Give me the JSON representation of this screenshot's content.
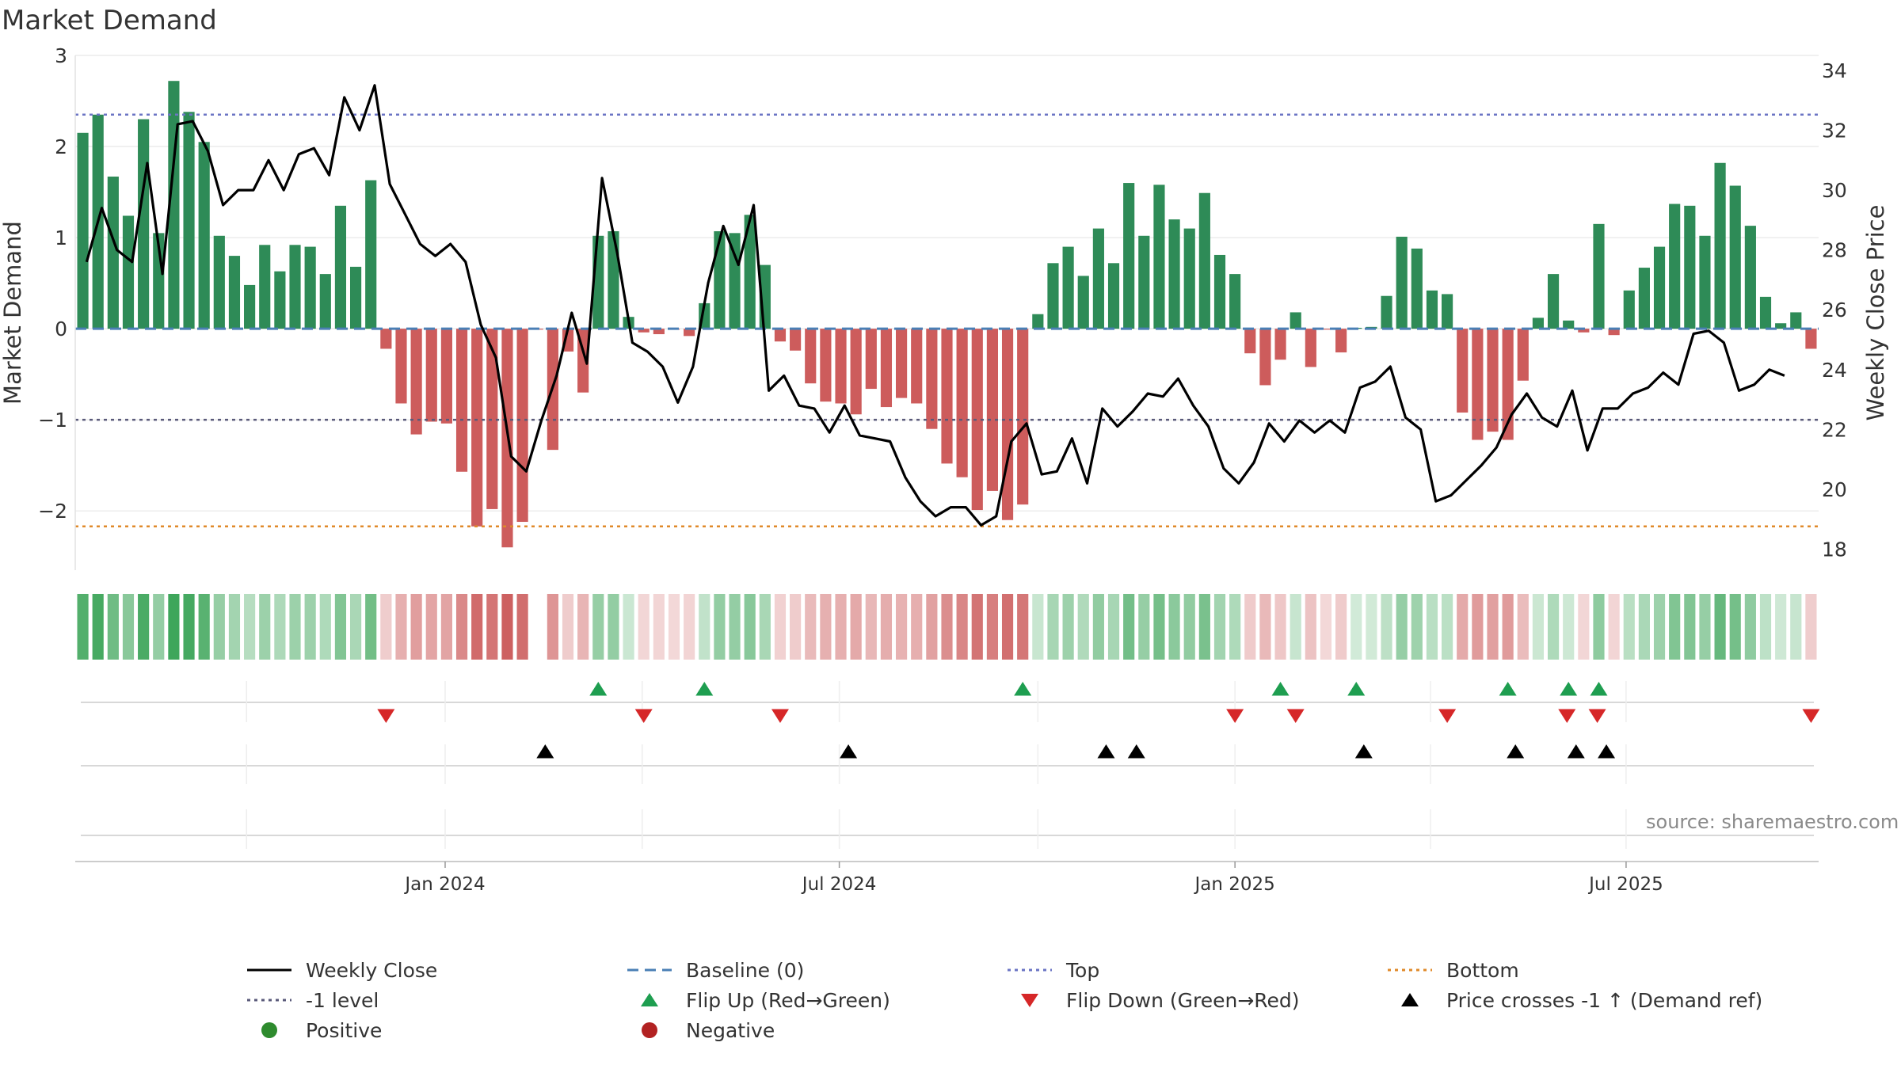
{
  "chart_data": {
    "type": "bar",
    "title": "Market Demand",
    "ylabel_left": "Market Demand",
    "ylabel_right": "Weekly Close Price",
    "ylim_left": [
      -2.65,
      3.0
    ],
    "ylim_right": [
      17.3,
      34.5
    ],
    "yticks_left": [
      {
        "v": 3,
        "label": "3"
      },
      {
        "v": 2,
        "label": "2"
      },
      {
        "v": 1,
        "label": "1"
      },
      {
        "v": 0,
        "label": "0"
      },
      {
        "v": -1,
        "label": "−1"
      },
      {
        "v": -2,
        "label": "−2"
      }
    ],
    "yticks_right": [
      {
        "v": 34,
        "label": "34"
      },
      {
        "v": 32,
        "label": "32"
      },
      {
        "v": 30,
        "label": "30"
      },
      {
        "v": 28,
        "label": "28"
      },
      {
        "v": 26,
        "label": "26"
      },
      {
        "v": 24,
        "label": "24"
      },
      {
        "v": 22,
        "label": "22"
      },
      {
        "v": 20,
        "label": "20"
      },
      {
        "v": 18,
        "label": "18"
      }
    ],
    "x_ticks": [
      {
        "week": 24.4,
        "label": "Jan 2024"
      },
      {
        "week": 50.4,
        "label": "Jul 2024"
      },
      {
        "week": 76.5,
        "label": "Jan 2025"
      },
      {
        "week": 102.3,
        "label": "Jul 2025"
      }
    ],
    "x_grid_weeks": [
      11.3,
      24.4,
      37.4,
      50.4,
      63.5,
      76.5,
      89.4,
      102.3
    ],
    "week_count": 115,
    "top_level": 2.35,
    "bottom_level": -2.17,
    "minus1_level": -1,
    "demand": [
      2.15,
      2.35,
      1.67,
      1.24,
      2.3,
      1.05,
      2.72,
      2.38,
      2.05,
      1.02,
      0.8,
      0.48,
      0.92,
      0.63,
      0.92,
      0.9,
      0.6,
      1.35,
      0.68,
      1.63,
      -0.22,
      -0.82,
      -1.16,
      -1.02,
      -1.04,
      -1.57,
      -2.17,
      -1.98,
      -2.4,
      -2.12,
      -0.01,
      -1.33,
      -0.25,
      -0.7,
      1.02,
      1.07,
      0.13,
      -0.04,
      -0.06,
      -0.01,
      -0.08,
      0.28,
      1.07,
      1.05,
      1.25,
      0.7,
      -0.14,
      -0.24,
      -0.6,
      -0.8,
      -0.82,
      -0.94,
      -0.66,
      -0.86,
      -0.76,
      -0.82,
      -1.1,
      -1.48,
      -1.63,
      -1.99,
      -1.78,
      -2.1,
      -1.93,
      0.16,
      0.72,
      0.9,
      0.58,
      1.1,
      0.72,
      1.6,
      1.02,
      1.58,
      1.2,
      1.1,
      1.49,
      0.81,
      0.6,
      -0.27,
      -0.62,
      -0.34,
      0.18,
      -0.42,
      -0.01,
      -0.26,
      0.01,
      0.02,
      0.36,
      1.01,
      0.88,
      0.42,
      0.38,
      -0.92,
      -1.22,
      -1.13,
      -1.22,
      -0.57,
      0.12,
      0.6,
      0.09,
      -0.04,
      1.15,
      -0.07,
      0.42,
      0.67,
      0.9,
      1.37,
      1.35,
      1.02,
      1.82,
      1.57,
      1.13,
      0.35,
      0.06,
      0.18,
      -0.22
    ],
    "close": [
      [
        0,
        27.6
      ],
      [
        1,
        29.4
      ],
      [
        2,
        28.0
      ],
      [
        3,
        27.6
      ],
      [
        4,
        30.9
      ],
      [
        5,
        27.2
      ],
      [
        6,
        32.2
      ],
      [
        7,
        32.3
      ],
      [
        8,
        31.3
      ],
      [
        9,
        29.5
      ],
      [
        10,
        30.0
      ],
      [
        11,
        30.0
      ],
      [
        12,
        31.0
      ],
      [
        13,
        30.0
      ],
      [
        14,
        31.2
      ],
      [
        15,
        31.4
      ],
      [
        16,
        30.5
      ],
      [
        17,
        33.1
      ],
      [
        18,
        32.0
      ],
      [
        19,
        33.5
      ],
      [
        20,
        30.2
      ],
      [
        21,
        29.2
      ],
      [
        22,
        28.2
      ],
      [
        23,
        27.8
      ],
      [
        24,
        28.2
      ],
      [
        25,
        27.6
      ],
      [
        26,
        25.5
      ],
      [
        27,
        24.4
      ],
      [
        28,
        21.1
      ],
      [
        29,
        20.6
      ],
      [
        30,
        22.3
      ],
      [
        31,
        23.8
      ],
      [
        32,
        25.9
      ],
      [
        33,
        24.2
      ],
      [
        34,
        30.4
      ],
      [
        35,
        27.9
      ],
      [
        36,
        24.9
      ],
      [
        37,
        24.6
      ],
      [
        38,
        24.1
      ],
      [
        39,
        22.9
      ],
      [
        40,
        24.1
      ],
      [
        41,
        26.9
      ],
      [
        42,
        28.8
      ],
      [
        43,
        27.5
      ],
      [
        44,
        29.5
      ],
      [
        45,
        23.3
      ],
      [
        46,
        23.8
      ],
      [
        47,
        22.8
      ],
      [
        48,
        22.7
      ],
      [
        49,
        21.9
      ],
      [
        50,
        22.8
      ],
      [
        51,
        21.8
      ],
      [
        52,
        21.7
      ],
      [
        53,
        21.6
      ],
      [
        54,
        20.4
      ],
      [
        55,
        19.6
      ],
      [
        56,
        19.1
      ],
      [
        57,
        19.4
      ],
      [
        58,
        19.4
      ],
      [
        59,
        18.8
      ],
      [
        60,
        19.1
      ],
      [
        61,
        21.6
      ],
      [
        62,
        22.2
      ],
      [
        63,
        20.5
      ],
      [
        64,
        20.6
      ],
      [
        65,
        21.7
      ],
      [
        66,
        20.2
      ],
      [
        67,
        22.7
      ],
      [
        68,
        22.1
      ],
      [
        69,
        22.6
      ],
      [
        70,
        23.2
      ],
      [
        71,
        23.1
      ],
      [
        72,
        23.7
      ],
      [
        73,
        22.8
      ],
      [
        74,
        22.1
      ],
      [
        75,
        20.7
      ],
      [
        76,
        20.2
      ],
      [
        77,
        20.9
      ],
      [
        78,
        22.2
      ],
      [
        79,
        21.6
      ],
      [
        80,
        22.3
      ],
      [
        81,
        21.9
      ],
      [
        82,
        22.3
      ],
      [
        83,
        21.9
      ],
      [
        84,
        23.4
      ],
      [
        85,
        23.6
      ],
      [
        86,
        24.1
      ],
      [
        87,
        22.4
      ],
      [
        88,
        22.0
      ],
      [
        89,
        19.6
      ],
      [
        90,
        19.8
      ],
      [
        91,
        20.3
      ],
      [
        92,
        20.8
      ],
      [
        93,
        21.4
      ],
      [
        94,
        22.5
      ],
      [
        95,
        23.2
      ],
      [
        96,
        22.4
      ],
      [
        97,
        22.1
      ],
      [
        98,
        23.3
      ],
      [
        99,
        21.3
      ],
      [
        100,
        22.7
      ],
      [
        101,
        22.7
      ],
      [
        102,
        23.2
      ],
      [
        103,
        23.4
      ],
      [
        104,
        23.9
      ],
      [
        105,
        23.5
      ],
      [
        106,
        25.2
      ],
      [
        107,
        25.3
      ],
      [
        108,
        24.9
      ],
      [
        109,
        23.3
      ],
      [
        110,
        23.5
      ],
      [
        111,
        24.0
      ],
      [
        112,
        23.8
      ]
    ],
    "close_x_offset": 0.25,
    "strip_gap_week": 30,
    "flip_up_weeks": [
      34.5,
      41.5,
      62.5,
      79.5,
      84.5,
      94.5,
      98.5,
      100.5
    ],
    "flip_down_weeks": [
      20.5,
      37.5,
      46.5,
      76.5,
      80.5,
      90.5,
      98.4,
      100.4,
      114.5
    ],
    "price_cross_weeks": [
      31,
      51,
      68,
      70,
      85,
      95,
      99,
      101
    ],
    "colors": {
      "positive_bar": "#2e8b57",
      "negative_bar": "#cd5c5c",
      "close_line": "#000000",
      "baseline": "#4a7fb5",
      "top_line": "#6b74c4",
      "bottom_line": "#e08a2a",
      "minus1_line": "#5a5a7a",
      "flip_up": "#1e9e50",
      "flip_down": "#d62728",
      "cross": "#000000",
      "positive_dot": "#2e8b2e",
      "negative_dot": "#b22222"
    }
  },
  "title": "Market Demand",
  "source": "source: sharemaestro.com",
  "legend": {
    "weekly_close": "Weekly Close",
    "baseline": "Baseline (0)",
    "top": "Top",
    "bottom": "Bottom",
    "minus1": "-1 level",
    "flip_up": "Flip Up (Red→Green)",
    "flip_down": "Flip Down (Green→Red)",
    "price_cross": "Price crosses -1 ↑ (Demand ref)",
    "positive": "Positive",
    "negative": "Negative"
  }
}
